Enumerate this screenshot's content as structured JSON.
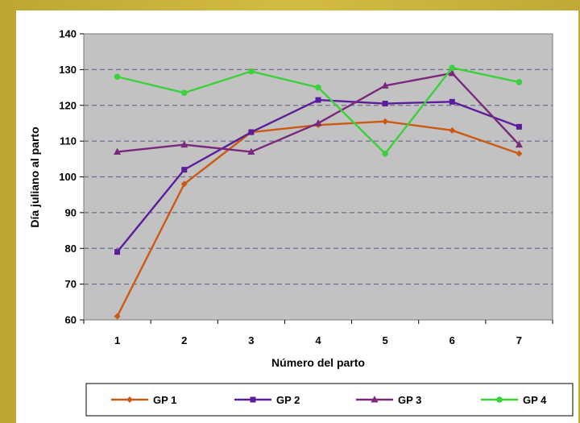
{
  "chart_data": {
    "type": "line",
    "title": "",
    "xlabel": "Número del parto",
    "ylabel": "Día juliano al parto",
    "x": [
      1,
      2,
      3,
      4,
      5,
      6,
      7
    ],
    "ylim": [
      60,
      140
    ],
    "yticks": [
      60,
      70,
      80,
      90,
      100,
      110,
      120,
      130,
      140
    ],
    "grid": true,
    "legend_position": "bottom",
    "series": [
      {
        "name": "GP 1",
        "color": "#cc5a12",
        "marker": "diamond",
        "values": [
          61,
          98,
          112.5,
          114.5,
          115.5,
          113,
          106.5
        ]
      },
      {
        "name": "GP 2",
        "color": "#5c1c9c",
        "marker": "square",
        "values": [
          79,
          102,
          112.5,
          121.5,
          120.5,
          121,
          114
        ]
      },
      {
        "name": "GP 3",
        "color": "#7a2a7c",
        "marker": "triangle",
        "values": [
          107,
          109,
          107,
          115,
          125.5,
          129,
          109
        ]
      },
      {
        "name": "GP 4",
        "color": "#3ad13a",
        "marker": "circle",
        "values": [
          128,
          123.5,
          129.5,
          125,
          106.5,
          130.5,
          126.5
        ]
      }
    ]
  }
}
